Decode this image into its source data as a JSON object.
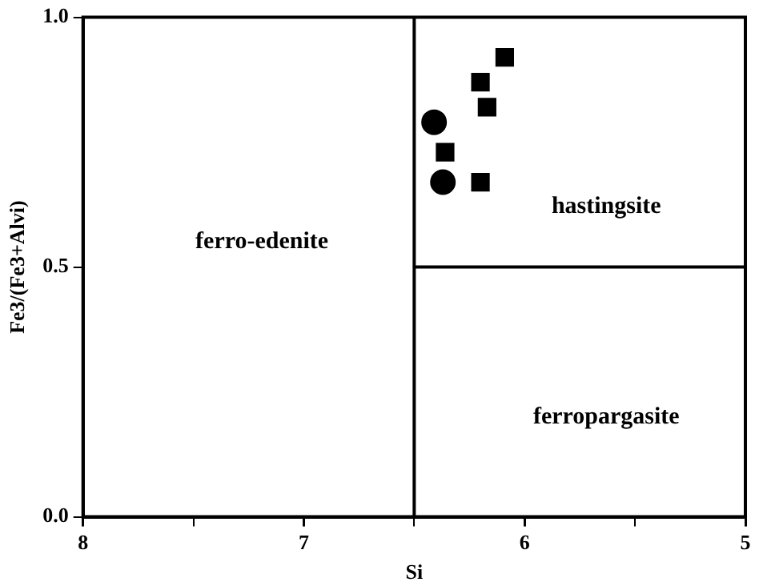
{
  "chart_data": {
    "type": "scatter",
    "xlabel": "Si",
    "ylabel": "Fe3/(Fe3+Alvi)",
    "xlim": [
      8,
      5
    ],
    "xticks": [
      8,
      {
        "value": 7.5,
        "label": null
      },
      7,
      {
        "value": 6.5,
        "label": null
      },
      6,
      {
        "value": 5.5,
        "label": null
      },
      5
    ],
    "ylim": [
      0,
      1
    ],
    "yticks": [
      {
        "value": 0,
        "label": "0.0"
      },
      {
        "value": 0.5,
        "label": "0.5"
      },
      {
        "value": 1,
        "label": "1.0"
      }
    ],
    "grid": false,
    "legend": false,
    "series": [
      {
        "type": "scatter",
        "marker": "circle",
        "color": "#000000",
        "x": [
          6.41,
          6.37
        ],
        "values": [
          0.79,
          0.67
        ]
      },
      {
        "type": "scatter",
        "marker": "square",
        "color": "#000000",
        "x": [
          6.09,
          6.2,
          6.17,
          6.36,
          6.2
        ],
        "values": [
          0.92,
          0.87,
          0.82,
          0.73,
          0.67
        ]
      },
      {
        "type": "line",
        "marker": "none",
        "color": "#000000",
        "x": [
          6.5,
          5
        ],
        "values": [
          0.5,
          0.5
        ]
      }
    ],
    "ref_lines": [
      {
        "axis": "x",
        "value": 6.5,
        "color": "#000000"
      }
    ],
    "annotations": [
      "ferro-edenite",
      "hastingsite",
      "ferropargasite"
    ]
  }
}
